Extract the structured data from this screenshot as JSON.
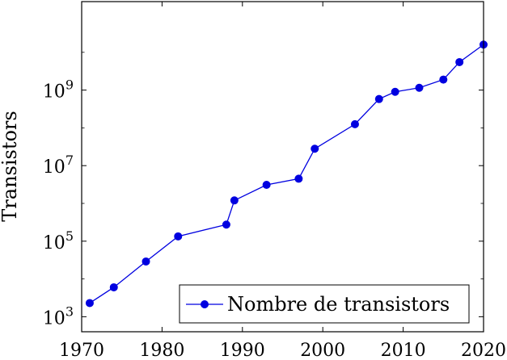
{
  "chart_data": {
    "type": "line",
    "title": "",
    "xlabel": "",
    "ylabel": "Transistors",
    "y_scale": "log",
    "xlim": [
      1970,
      2020
    ],
    "ylim": [
      400,
      220000000000
    ],
    "x_ticks": [
      1970,
      1980,
      1990,
      2000,
      2010,
      2020
    ],
    "y_ticks": [
      {
        "value": 1000,
        "base": "10",
        "exp": "3"
      },
      {
        "value": 100000,
        "base": "10",
        "exp": "5"
      },
      {
        "value": 10000000,
        "base": "10",
        "exp": "7"
      },
      {
        "value": 1000000000,
        "base": "10",
        "exp": "9"
      }
    ],
    "grid": false,
    "legend_position": "bottom-right",
    "color": "#0000e0",
    "series": [
      {
        "name": "Nombre de transistors",
        "x": [
          1971,
          1974,
          1978,
          1982,
          1988,
          1989,
          1993,
          1997,
          1999,
          2004,
          2007,
          2009,
          2012,
          2015,
          2017,
          2020
        ],
        "y": [
          2300,
          6000,
          29000,
          134000,
          275000,
          1200000,
          3100000,
          4500000,
          28000000,
          125000000,
          580000000,
          900000000,
          1150000000,
          1900000000,
          5500000000,
          16000000000
        ]
      }
    ]
  }
}
